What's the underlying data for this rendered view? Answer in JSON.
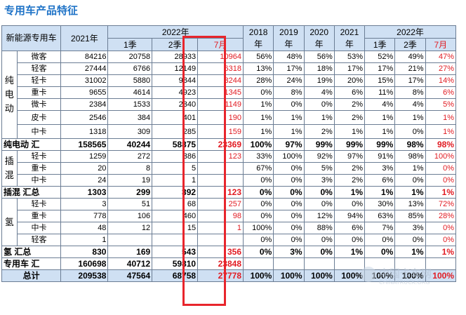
{
  "title": "专用车产品特征",
  "header": {
    "corner": "新能源专用车",
    "y2021": "2021年",
    "y2022": "2022年",
    "q1": "1季",
    "q2": "2季",
    "jul": "7月",
    "s2018": "2018年",
    "s2019": "2019年",
    "s2020": "2020年",
    "s2021": "2021年",
    "s2022": "2022年",
    "sq1": "1季",
    "sq2": "2季",
    "sjul": "7月"
  },
  "categories": {
    "bev": "纯电动",
    "phev": "插混",
    "hydrogen": "氢"
  },
  "rows": [
    {
      "sub": "微客",
      "y2021": "84216",
      "q1": "20758",
      "q2": "28933",
      "jul": "10964",
      "s2018": "56%",
      "s2019": "48%",
      "s2020": "56%",
      "s2021": "53%",
      "sq1": "52%",
      "sq2": "49%",
      "sjul": "47%"
    },
    {
      "sub": "轻客",
      "y2021": "27444",
      "q1": "6766",
      "q2": "12149",
      "jul": "6318",
      "s2018": "13%",
      "s2019": "17%",
      "s2020": "18%",
      "s2021": "17%",
      "sq1": "17%",
      "sq2": "21%",
      "sjul": "27%"
    },
    {
      "sub": "轻卡",
      "y2021": "31002",
      "q1": "5880",
      "q2": "9844",
      "jul": "3244",
      "s2018": "28%",
      "s2019": "24%",
      "s2020": "19%",
      "s2021": "20%",
      "sq1": "15%",
      "sq2": "17%",
      "sjul": "14%"
    },
    {
      "sub": "重卡",
      "y2021": "9655",
      "q1": "4614",
      "q2": "4923",
      "jul": "1345",
      "s2018": "0%",
      "s2019": "8%",
      "s2020": "4%",
      "s2021": "6%",
      "sq1": "11%",
      "sq2": "8%",
      "sjul": "6%"
    },
    {
      "sub": "微卡",
      "y2021": "2384",
      "q1": "1533",
      "q2": "2340",
      "jul": "1149",
      "s2018": "1%",
      "s2019": "0%",
      "s2020": "0%",
      "s2021": "2%",
      "sq1": "4%",
      "sq2": "4%",
      "sjul": "5%"
    },
    {
      "sub": "皮卡",
      "y2021": "2546",
      "q1": "384",
      "q2": "401",
      "jul": "190",
      "s2018": "1%",
      "s2019": "1%",
      "s2020": "1%",
      "s2021": "2%",
      "sq1": "1%",
      "sq2": "1%",
      "sjul": "1%"
    },
    {
      "sub": "中卡",
      "y2021": "1318",
      "q1": "309",
      "q2": "285",
      "jul": "159",
      "s2018": "1%",
      "s2019": "1%",
      "s2020": "2%",
      "s2021": "1%",
      "sq1": "1%",
      "sq2": "0%",
      "sjul": "1%"
    },
    {
      "label": "纯电动 汇",
      "y2021": "158565",
      "q1": "40244",
      "q2": "58875",
      "jul": "23369",
      "s2018": "100%",
      "s2019": "97%",
      "s2020": "99%",
      "s2021": "99%",
      "sq1": "99%",
      "sq2": "98%",
      "sjul": "98%"
    },
    {
      "sub": "轻卡",
      "y2021": "1259",
      "q1": "272",
      "q2": "386",
      "jul": "123",
      "s2018": "33%",
      "s2019": "100%",
      "s2020": "92%",
      "s2021": "97%",
      "sq1": "91%",
      "sq2": "98%",
      "sjul": "100%"
    },
    {
      "sub": "重卡",
      "y2021": "20",
      "q1": "8",
      "q2": "5",
      "jul": "",
      "s2018": "67%",
      "s2019": "0%",
      "s2020": "5%",
      "s2021": "2%",
      "sq1": "3%",
      "sq2": "1%",
      "sjul": "0%"
    },
    {
      "sub": "中卡",
      "y2021": "24",
      "q1": "19",
      "q2": "1",
      "jul": "",
      "s2018": "0%",
      "s2019": "0%",
      "s2020": "3%",
      "s2021": "2%",
      "sq1": "6%",
      "sq2": "0%",
      "sjul": "0%"
    },
    {
      "label": "插混 汇总",
      "y2021": "1303",
      "q1": "299",
      "q2": "392",
      "jul": "123",
      "s2018": "0%",
      "s2019": "0%",
      "s2020": "0%",
      "s2021": "1%",
      "sq1": "1%",
      "sq2": "1%",
      "sjul": "1%"
    },
    {
      "sub": "轻卡",
      "y2021": "3",
      "q1": "51",
      "q2": "68",
      "jul": "257",
      "s2018": "0%",
      "s2019": "0%",
      "s2020": "0%",
      "s2021": "0%",
      "sq1": "30%",
      "sq2": "13%",
      "sjul": "72%"
    },
    {
      "sub": "重卡",
      "y2021": "778",
      "q1": "106",
      "q2": "460",
      "jul": "98",
      "s2018": "0%",
      "s2019": "0%",
      "s2020": "12%",
      "s2021": "94%",
      "sq1": "63%",
      "sq2": "85%",
      "sjul": "28%"
    },
    {
      "sub": "中卡",
      "y2021": "48",
      "q1": "12",
      "q2": "15",
      "jul": "1",
      "s2018": "100%",
      "s2019": "0%",
      "s2020": "88%",
      "s2021": "6%",
      "sq1": "7%",
      "sq2": "3%",
      "sjul": "0%"
    },
    {
      "sub": "轻客",
      "y2021": "1",
      "q1": "",
      "q2": "",
      "jul": "",
      "s2018": "0%",
      "s2019": "0%",
      "s2020": "0%",
      "s2021": "0%",
      "sq1": "0%",
      "sq2": "0%",
      "sjul": "0%"
    },
    {
      "label": "氢 汇总",
      "y2021": "830",
      "q1": "169",
      "q2": "543",
      "jul": "356",
      "s2018": "0%",
      "s2019": "3%",
      "s2020": "0%",
      "s2021": "1%",
      "sq1": "0%",
      "sq2": "1%",
      "sjul": "1%"
    },
    {
      "label": "专用车 汇",
      "y2021": "160698",
      "q1": "40712",
      "q2": "59810",
      "jul": "23848",
      "s2018": "",
      "s2019": "",
      "s2020": "",
      "s2021": "",
      "sq1": "",
      "sq2": "",
      "sjul": ""
    },
    {
      "label": "总计",
      "y2021": "209538",
      "q1": "47564",
      "q2": "68758",
      "jul": "27778",
      "s2018": "100%",
      "s2019": "100%",
      "s2020": "100%",
      "s2021": "100%",
      "sq1": "100%",
      "sq2": "100%",
      "sjul": "100%"
    }
  ],
  "watermark": {
    "text": "中国卡车网",
    "sub": "CHINATRUCK.ORG"
  },
  "colors": {
    "title": "#1f73c7",
    "header_bg": "#cfe0f3",
    "highlight_red": "#e11b22",
    "box_red": "#e8252c"
  }
}
